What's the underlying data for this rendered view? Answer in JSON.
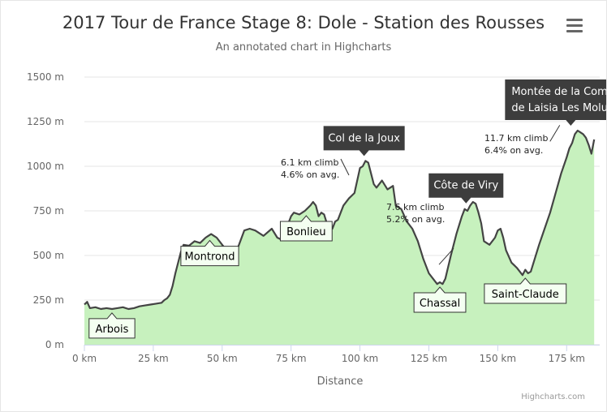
{
  "title": "2017 Tour de France Stage 8: Dole - Station des Rousses",
  "subtitle": "An annotated chart in Highcharts",
  "menu_icon": "hamburger-menu-icon",
  "credits": "Highcharts.com",
  "colors": {
    "area_fill": "#c7f1be",
    "line": "#444444",
    "label_dark_bg": "#333333",
    "label_light_bg": "#f4fff1"
  },
  "chart_data": {
    "type": "area",
    "xlabel": "Distance",
    "ylabel": "",
    "xlim": [
      0,
      187
    ],
    "ylim": [
      0,
      1500
    ],
    "x_ticks": [
      "0 km",
      "25 km",
      "50 km",
      "75 km",
      "100 km",
      "125 km",
      "150 km",
      "175 km"
    ],
    "y_ticks": [
      "0 m",
      "250 m",
      "500 m",
      "750 m",
      "1000 m",
      "1250 m",
      "1500 m"
    ],
    "grid": true,
    "series": [
      {
        "x": [
          0,
          1,
          2,
          4,
          6,
          8,
          10,
          12,
          14,
          16,
          18,
          20,
          22,
          24,
          26,
          28,
          29,
          30,
          31,
          32,
          33,
          35,
          36,
          38,
          40,
          42,
          44,
          46,
          47,
          48,
          50,
          52,
          55,
          58,
          60,
          62,
          65,
          68,
          70,
          72,
          74,
          75,
          76,
          78,
          80,
          82,
          83,
          84,
          85,
          86,
          87,
          88,
          89,
          90,
          91,
          92,
          94,
          96,
          98,
          100,
          101,
          102,
          103,
          104,
          105,
          106,
          108,
          110,
          112,
          113,
          115,
          117,
          119,
          121,
          123,
          125,
          127,
          128,
          129,
          130,
          131,
          133,
          135,
          137,
          138,
          139,
          140,
          141,
          142,
          143,
          144,
          145,
          147,
          149,
          150,
          151,
          152,
          153,
          155,
          157,
          159,
          160,
          161,
          162,
          163,
          165,
          167,
          169,
          171,
          173,
          175,
          176,
          177,
          178,
          179,
          180,
          181,
          182,
          183,
          184,
          185
        ],
        "values": [
          225,
          240,
          205,
          210,
          200,
          205,
          200,
          205,
          210,
          200,
          205,
          215,
          220,
          225,
          230,
          235,
          250,
          260,
          280,
          330,
          400,
          520,
          560,
          555,
          580,
          570,
          600,
          620,
          610,
          600,
          560,
          520,
          515,
          640,
          650,
          640,
          610,
          650,
          600,
          585,
          680,
          720,
          740,
          730,
          750,
          780,
          800,
          780,
          720,
          740,
          730,
          680,
          640,
          650,
          690,
          700,
          780,
          820,
          850,
          990,
          1000,
          1030,
          1020,
          960,
          900,
          880,
          920,
          870,
          890,
          780,
          760,
          690,
          650,
          580,
          480,
          400,
          360,
          340,
          350,
          340,
          370,
          500,
          620,
          720,
          760,
          750,
          780,
          800,
          790,
          740,
          680,
          580,
          560,
          600,
          640,
          650,
          600,
          530,
          460,
          430,
          390,
          420,
          400,
          410,
          460,
          560,
          650,
          740,
          850,
          960,
          1050,
          1100,
          1130,
          1180,
          1200,
          1190,
          1180,
          1160,
          1120,
          1070,
          1150
        ]
      }
    ],
    "annotations": [
      {
        "x": 10,
        "y": 205,
        "text": "Arbois"
      },
      {
        "x": 45.5,
        "y": 611,
        "text": "Montrond"
      },
      {
        "x": 80.5,
        "y": 750,
        "text": "Bonlieu"
      },
      {
        "x": 101.5,
        "y": 1030,
        "text": "Col de la Joux"
      },
      {
        "x": 129,
        "y": 350,
        "text": "Chassal"
      },
      {
        "x": 138.5,
        "y": 765,
        "text": "Côte de Viry"
      },
      {
        "x": 160,
        "y": 400,
        "text": "Saint-Claude"
      },
      {
        "x": 176.5,
        "y": 1200,
        "text": "Montée de la Combe de Laisia Les Molunes"
      },
      {
        "x": 96,
        "y": 950,
        "text": "6.1 km climb 4.6% on avg."
      },
      {
        "x": 134,
        "y": 540,
        "text": "7.6 km climb 5.2% on avg."
      },
      {
        "x": 172.5,
        "y": 1230,
        "text": "11.7 km climb 6.4% on avg."
      }
    ]
  }
}
